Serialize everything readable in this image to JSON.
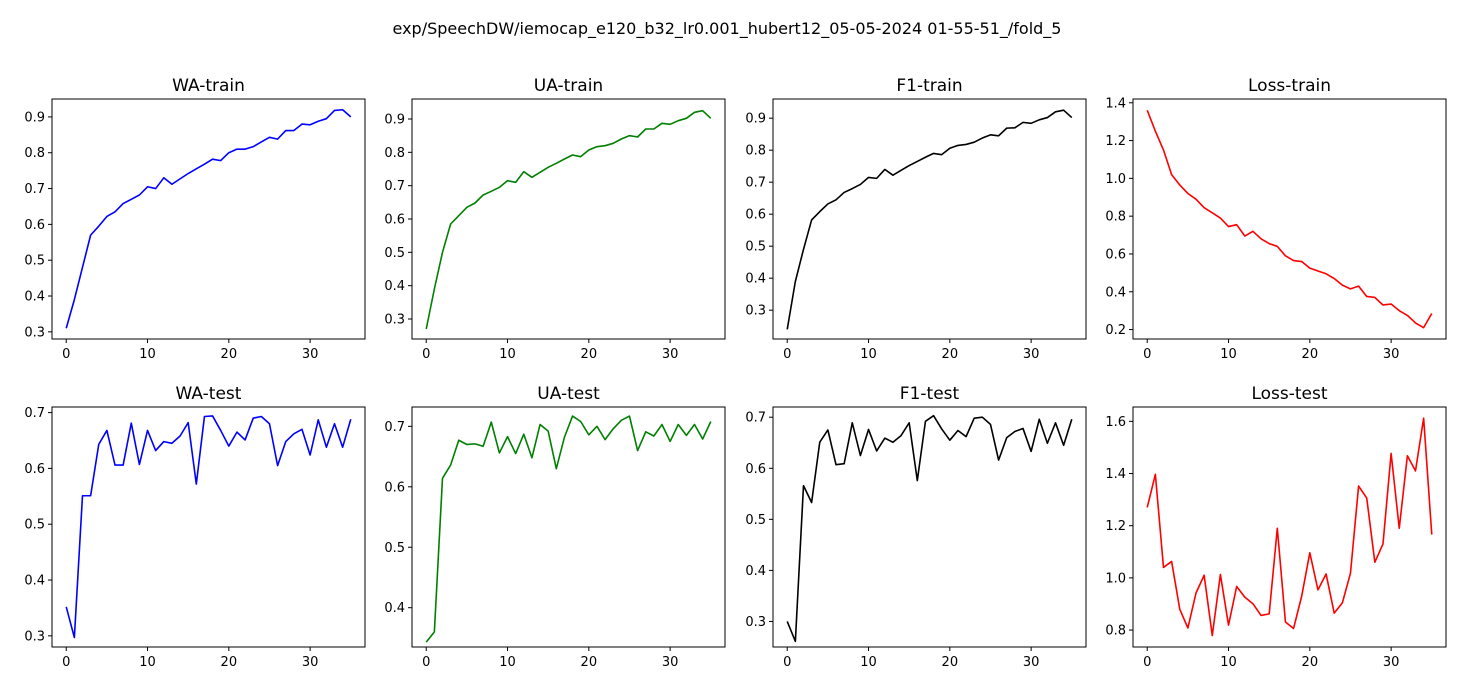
{
  "figure": {
    "suptitle": "exp/SpeechDW/iemocap_e120_b32_lr0.001_hubert12_05-05-2024 01-55-51_/fold_5"
  },
  "chart_data": [
    {
      "type": "line",
      "title": "WA-train",
      "color": "#0000ff",
      "x": [
        0,
        1,
        2,
        3,
        4,
        5,
        6,
        7,
        8,
        9,
        10,
        11,
        12,
        13,
        14,
        15,
        16,
        17,
        18,
        19,
        20,
        21,
        22,
        23,
        24,
        25,
        26,
        27,
        28,
        29,
        30,
        31,
        32,
        33,
        34,
        35
      ],
      "values": [
        0.31,
        0.39,
        0.48,
        0.57,
        0.595,
        0.622,
        0.635,
        0.658,
        0.67,
        0.682,
        0.705,
        0.7,
        0.73,
        0.712,
        0.727,
        0.742,
        0.755,
        0.768,
        0.782,
        0.778,
        0.8,
        0.81,
        0.81,
        0.817,
        0.83,
        0.843,
        0.838,
        0.862,
        0.862,
        0.88,
        0.878,
        0.888,
        0.895,
        0.918,
        0.92,
        0.9
      ],
      "ylim": [
        0.28,
        0.95
      ],
      "xlim": [
        -1.75,
        36.75
      ],
      "yticks": [
        "0.3",
        "0.4",
        "0.5",
        "0.6",
        "0.7",
        "0.8",
        "0.9"
      ],
      "xticks": [
        "0",
        "10",
        "20",
        "30"
      ]
    },
    {
      "type": "line",
      "title": "UA-train",
      "color": "#008000",
      "x": [
        0,
        1,
        2,
        3,
        4,
        5,
        6,
        7,
        8,
        9,
        10,
        11,
        12,
        13,
        14,
        15,
        16,
        17,
        18,
        19,
        20,
        21,
        22,
        23,
        24,
        25,
        26,
        27,
        28,
        29,
        30,
        31,
        32,
        33,
        34,
        35
      ],
      "values": [
        0.27,
        0.39,
        0.5,
        0.585,
        0.61,
        0.635,
        0.648,
        0.672,
        0.683,
        0.695,
        0.715,
        0.71,
        0.742,
        0.725,
        0.74,
        0.755,
        0.767,
        0.78,
        0.792,
        0.787,
        0.807,
        0.817,
        0.82,
        0.827,
        0.84,
        0.85,
        0.846,
        0.87,
        0.87,
        0.887,
        0.884,
        0.895,
        0.902,
        0.92,
        0.925,
        0.902
      ],
      "ylim": [
        0.24,
        0.96
      ],
      "xlim": [
        -1.75,
        36.75
      ],
      "yticks": [
        "0.3",
        "0.4",
        "0.5",
        "0.6",
        "0.7",
        "0.8",
        "0.9"
      ],
      "xticks": [
        "0",
        "10",
        "20",
        "30"
      ]
    },
    {
      "type": "line",
      "title": "F1-train",
      "color": "#000000",
      "x": [
        0,
        1,
        2,
        3,
        4,
        5,
        6,
        7,
        8,
        9,
        10,
        11,
        12,
        13,
        14,
        15,
        16,
        17,
        18,
        19,
        20,
        21,
        22,
        23,
        24,
        25,
        26,
        27,
        28,
        29,
        30,
        31,
        32,
        33,
        34,
        35
      ],
      "values": [
        0.24,
        0.39,
        0.49,
        0.582,
        0.608,
        0.632,
        0.645,
        0.668,
        0.68,
        0.693,
        0.715,
        0.712,
        0.74,
        0.722,
        0.737,
        0.752,
        0.765,
        0.778,
        0.79,
        0.786,
        0.806,
        0.815,
        0.818,
        0.825,
        0.838,
        0.848,
        0.845,
        0.869,
        0.87,
        0.887,
        0.884,
        0.895,
        0.902,
        0.92,
        0.925,
        0.902
      ],
      "ylim": [
        0.21,
        0.96
      ],
      "xlim": [
        -1.75,
        36.75
      ],
      "yticks": [
        "0.3",
        "0.4",
        "0.5",
        "0.6",
        "0.7",
        "0.8",
        "0.9"
      ],
      "xticks": [
        "0",
        "10",
        "20",
        "30"
      ]
    },
    {
      "type": "line",
      "title": "Loss-train",
      "color": "#ff0000",
      "x": [
        0,
        1,
        2,
        3,
        4,
        5,
        6,
        7,
        8,
        9,
        10,
        11,
        12,
        13,
        14,
        15,
        16,
        17,
        18,
        19,
        20,
        21,
        22,
        23,
        24,
        25,
        26,
        27,
        28,
        29,
        30,
        31,
        32,
        33,
        34,
        35
      ],
      "values": [
        1.36,
        1.25,
        1.15,
        1.02,
        0.965,
        0.92,
        0.89,
        0.845,
        0.818,
        0.79,
        0.745,
        0.755,
        0.695,
        0.72,
        0.68,
        0.655,
        0.64,
        0.59,
        0.565,
        0.56,
        0.525,
        0.51,
        0.495,
        0.47,
        0.435,
        0.415,
        0.43,
        0.375,
        0.37,
        0.33,
        0.335,
        0.3,
        0.275,
        0.235,
        0.21,
        0.285
      ],
      "ylim": [
        0.15,
        1.42
      ],
      "xlim": [
        -1.75,
        36.75
      ],
      "yticks": [
        "0.2",
        "0.4",
        "0.6",
        "0.8",
        "1.0",
        "1.2",
        "1.4"
      ],
      "xticks": [
        "0",
        "10",
        "20",
        "30"
      ]
    },
    {
      "type": "line",
      "title": "WA-test",
      "color": "#0000ff",
      "x": [
        0,
        1,
        2,
        3,
        4,
        5,
        6,
        7,
        8,
        9,
        10,
        11,
        12,
        13,
        14,
        15,
        16,
        17,
        18,
        19,
        20,
        21,
        22,
        23,
        24,
        25,
        26,
        27,
        28,
        29,
        30,
        31,
        32,
        33,
        34,
        35
      ],
      "values": [
        0.352,
        0.297,
        0.551,
        0.551,
        0.643,
        0.668,
        0.606,
        0.606,
        0.681,
        0.607,
        0.668,
        0.632,
        0.648,
        0.645,
        0.658,
        0.682,
        0.572,
        0.693,
        0.694,
        0.668,
        0.64,
        0.665,
        0.651,
        0.69,
        0.693,
        0.68,
        0.605,
        0.648,
        0.662,
        0.67,
        0.624,
        0.687,
        0.638,
        0.68,
        0.638,
        0.688
      ],
      "ylim": [
        0.28,
        0.71
      ],
      "xlim": [
        -1.75,
        36.75
      ],
      "yticks": [
        "0.3",
        "0.4",
        "0.5",
        "0.6",
        "0.7"
      ],
      "xticks": [
        "0",
        "10",
        "20",
        "30"
      ]
    },
    {
      "type": "line",
      "title": "UA-test",
      "color": "#008000",
      "x": [
        0,
        1,
        2,
        3,
        4,
        5,
        6,
        7,
        8,
        9,
        10,
        11,
        12,
        13,
        14,
        15,
        16,
        17,
        18,
        19,
        20,
        21,
        22,
        23,
        24,
        25,
        26,
        27,
        28,
        29,
        30,
        31,
        32,
        33,
        34,
        35
      ],
      "values": [
        0.343,
        0.36,
        0.614,
        0.636,
        0.677,
        0.67,
        0.671,
        0.667,
        0.707,
        0.656,
        0.683,
        0.655,
        0.687,
        0.648,
        0.703,
        0.692,
        0.63,
        0.682,
        0.717,
        0.708,
        0.686,
        0.7,
        0.678,
        0.696,
        0.71,
        0.717,
        0.66,
        0.691,
        0.684,
        0.703,
        0.675,
        0.703,
        0.685,
        0.703,
        0.679,
        0.708
      ],
      "ylim": [
        0.335,
        0.732
      ],
      "xlim": [
        -1.75,
        36.75
      ],
      "yticks": [
        "0.4",
        "0.5",
        "0.6",
        "0.7"
      ],
      "xticks": [
        "0",
        "10",
        "20",
        "30"
      ]
    },
    {
      "type": "line",
      "title": "F1-test",
      "color": "#000000",
      "x": [
        0,
        1,
        2,
        3,
        4,
        5,
        6,
        7,
        8,
        9,
        10,
        11,
        12,
        13,
        14,
        15,
        16,
        17,
        18,
        19,
        20,
        21,
        22,
        23,
        24,
        25,
        26,
        27,
        28,
        29,
        30,
        31,
        32,
        33,
        34,
        35
      ],
      "values": [
        0.3,
        0.261,
        0.566,
        0.533,
        0.651,
        0.675,
        0.607,
        0.609,
        0.689,
        0.625,
        0.676,
        0.634,
        0.659,
        0.651,
        0.664,
        0.689,
        0.576,
        0.692,
        0.703,
        0.677,
        0.655,
        0.674,
        0.662,
        0.698,
        0.7,
        0.686,
        0.616,
        0.66,
        0.672,
        0.678,
        0.633,
        0.696,
        0.649,
        0.689,
        0.645,
        0.696
      ],
      "ylim": [
        0.25,
        0.72
      ],
      "xlim": [
        -1.75,
        36.75
      ],
      "yticks": [
        "0.3",
        "0.4",
        "0.5",
        "0.6",
        "0.7"
      ],
      "xticks": [
        "0",
        "10",
        "20",
        "30"
      ]
    },
    {
      "type": "line",
      "title": "Loss-test",
      "color": "#ff0000",
      "x": [
        0,
        1,
        2,
        3,
        4,
        5,
        6,
        7,
        8,
        9,
        10,
        11,
        12,
        13,
        14,
        15,
        16,
        17,
        18,
        19,
        20,
        21,
        22,
        23,
        24,
        25,
        26,
        27,
        28,
        29,
        30,
        31,
        32,
        33,
        34,
        35
      ],
      "values": [
        1.27,
        1.397,
        1.04,
        1.063,
        0.88,
        0.808,
        0.942,
        1.01,
        0.779,
        1.013,
        0.819,
        0.967,
        0.926,
        0.901,
        0.856,
        0.862,
        1.19,
        0.831,
        0.806,
        0.93,
        1.096,
        0.954,
        1.015,
        0.865,
        0.904,
        1.018,
        1.352,
        1.306,
        1.06,
        1.13,
        1.477,
        1.19,
        1.468,
        1.41,
        1.612,
        1.166
      ],
      "ylim": [
        0.735,
        1.655
      ],
      "xlim": [
        -1.75,
        36.75
      ],
      "yticks": [
        "0.8",
        "1.0",
        "1.2",
        "1.4",
        "1.6"
      ],
      "xticks": [
        "0",
        "10",
        "20",
        "30"
      ]
    }
  ]
}
